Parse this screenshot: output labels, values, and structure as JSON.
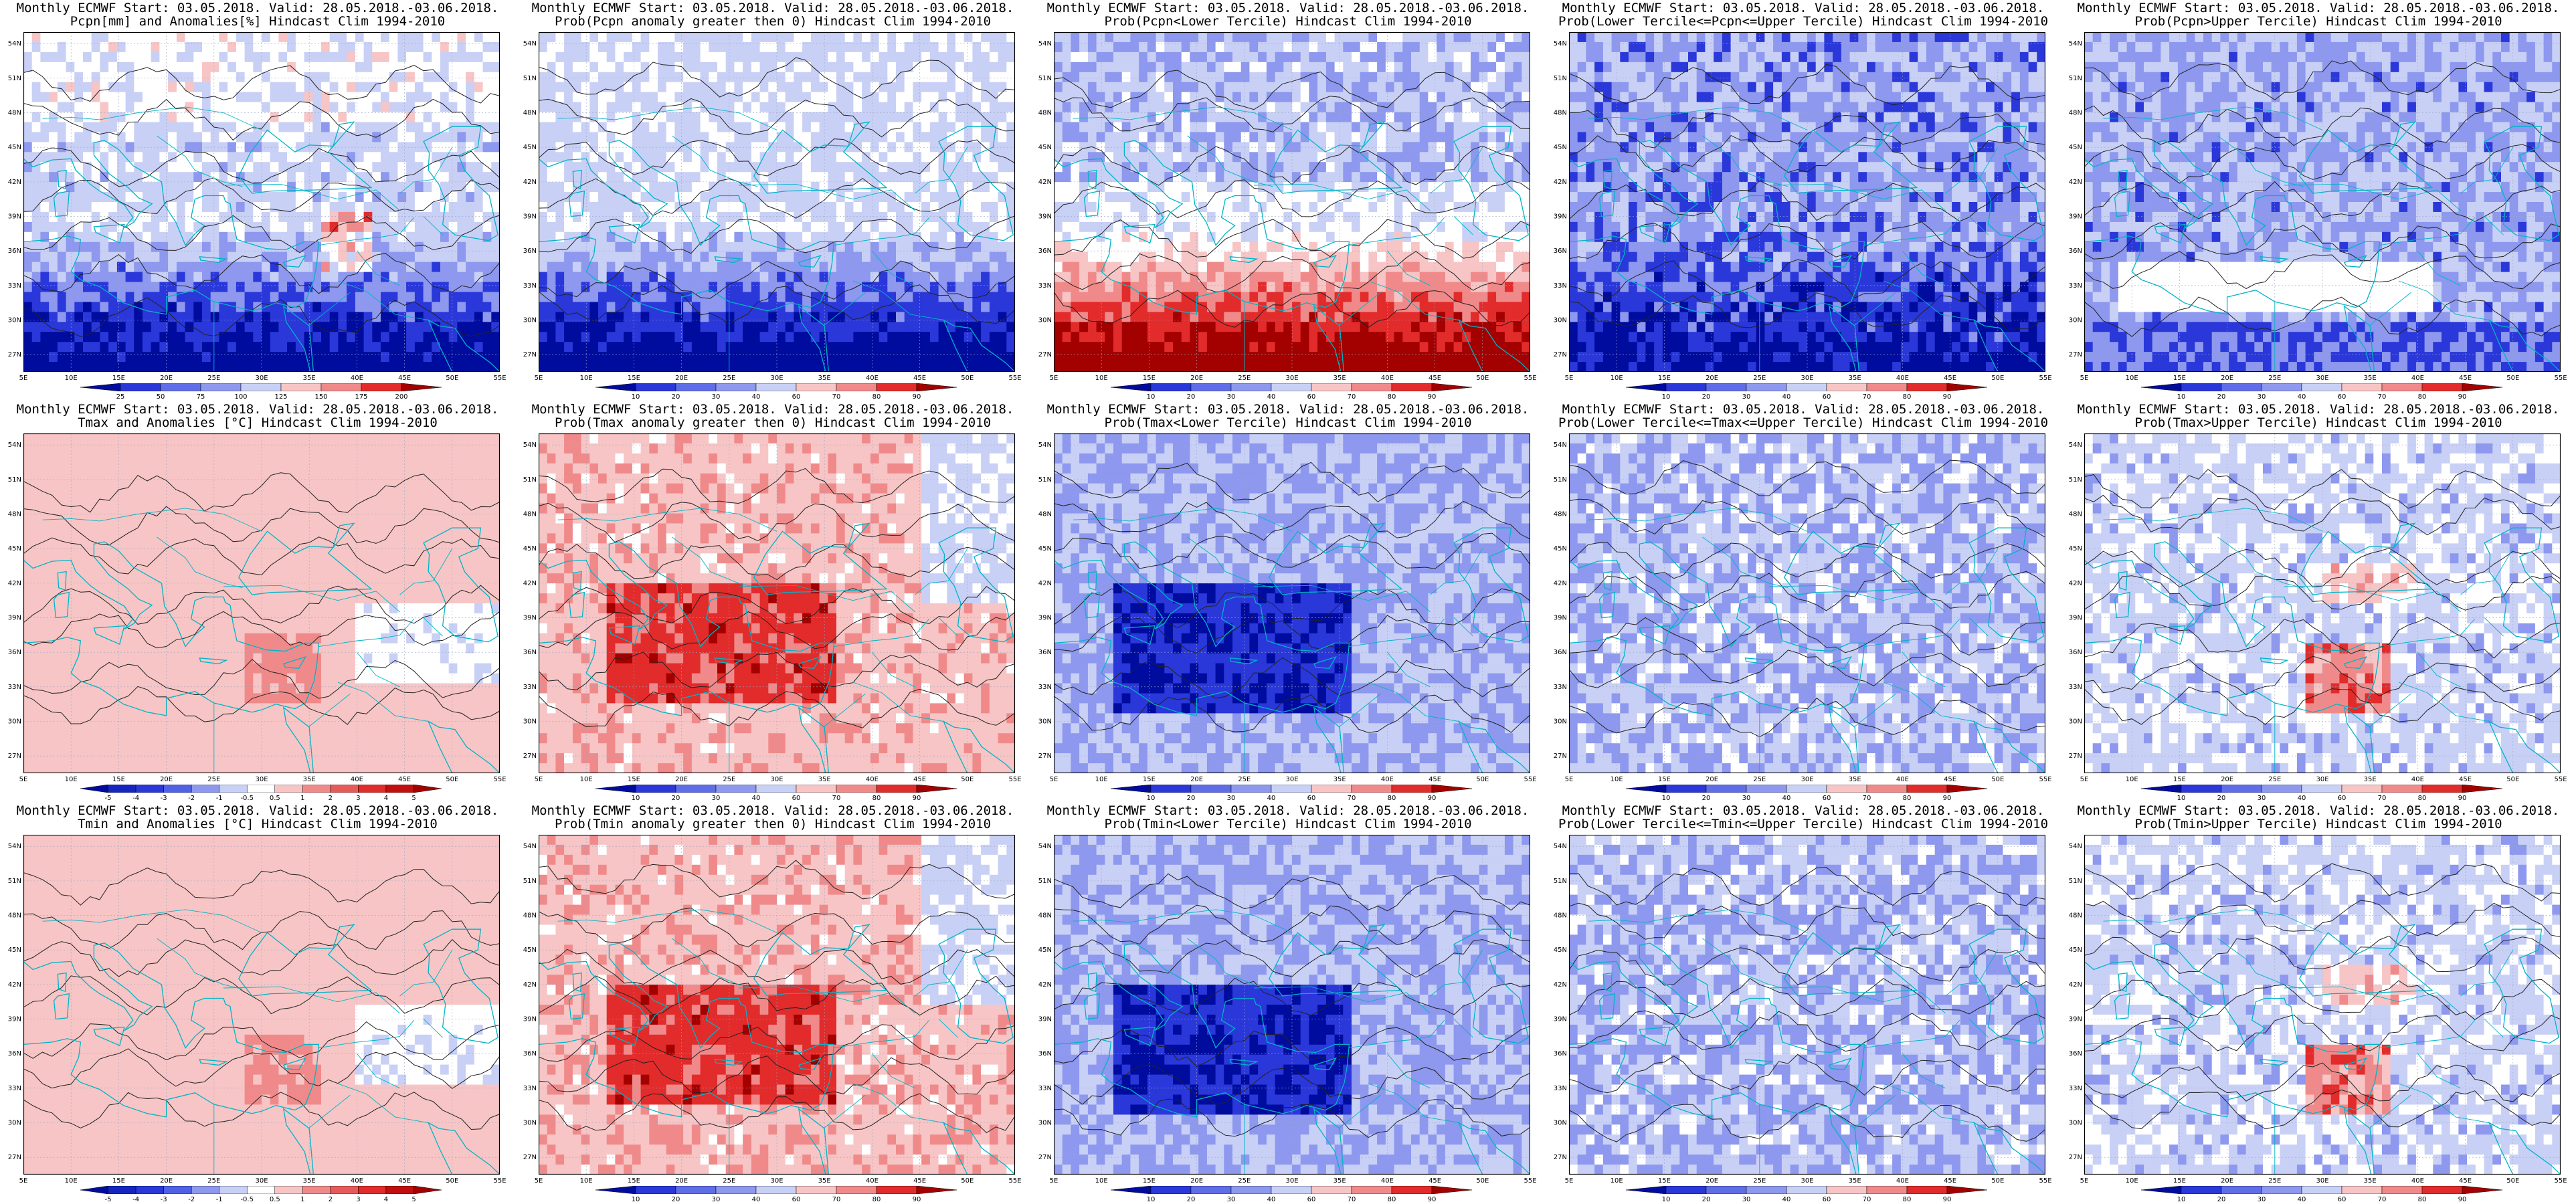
{
  "lat_ticks": [
    "54N",
    "51N",
    "48N",
    "45N",
    "42N",
    "39N",
    "36N",
    "33N",
    "30N",
    "27N"
  ],
  "lon_ticks": [
    "5E",
    "10E",
    "15E",
    "20E",
    "25E",
    "30E",
    "35E",
    "40E",
    "45E",
    "50E",
    "55E"
  ],
  "colors": {
    "blue_dark": "#000c9e",
    "blue_mid": "#2a37d9",
    "blue_light": "#8d98ee",
    "blue_pale": "#c9d0f6",
    "red_pale": "#f7c5c5",
    "red_light": "#f08a8a",
    "red_mid": "#e22b2b",
    "red_dark": "#a30000",
    "coast": "#00b4c8",
    "contour": "#222222"
  },
  "panels": [
    {
      "title1": "Monthly ECMWF Start: 03.05.2018. Valid: 28.05.2018.-03.06.2018.",
      "title2": "Pcpn[mm] and Anomalies[%] Hindcast Clim 1994-2010",
      "field": "pcpn_anom",
      "cbar": [
        "25",
        "50",
        "75",
        "100",
        "125",
        "150",
        "175",
        "200"
      ]
    },
    {
      "title1": "Monthly ECMWF Start: 03.05.2018. Valid: 28.05.2018.-03.06.2018.",
      "title2": "Prob(Pcpn anomaly greater then 0) Hindcast Clim 1994-2010",
      "field": "pcpn_prob_pos",
      "cbar": [
        "10",
        "20",
        "30",
        "40",
        "60",
        "70",
        "80",
        "90"
      ]
    },
    {
      "title1": "Monthly ECMWF Start: 03.05.2018. Valid: 28.05.2018.-03.06.2018.",
      "title2": "Prob(Pcpn<Lower Tercile) Hindcast Clim 1994-2010",
      "field": "pcpn_lower",
      "cbar": [
        "10",
        "20",
        "30",
        "40",
        "60",
        "70",
        "80",
        "90"
      ]
    },
    {
      "title1": "Monthly ECMWF Start: 03.05.2018. Valid: 28.05.2018.-03.06.2018.",
      "title2": "Prob(Lower Tercile<=Pcpn<=Upper Tercile) Hindcast Clim 1994-2010",
      "field": "pcpn_mid",
      "cbar": [
        "10",
        "20",
        "30",
        "40",
        "60",
        "70",
        "80",
        "90"
      ]
    },
    {
      "title1": "Monthly ECMWF Start: 03.05.2018. Valid: 28.05.2018.-03.06.2018.",
      "title2": "Prob(Pcpn>Upper Tercile) Hindcast Clim 1994-2010",
      "field": "pcpn_upper",
      "cbar": [
        "10",
        "20",
        "30",
        "40",
        "60",
        "70",
        "80",
        "90"
      ]
    },
    {
      "title1": "Monthly ECMWF Start: 03.05.2018. Valid: 28.05.2018.-03.06.2018.",
      "title2": "Tmax and Anomalies [°C] Hindcast Clim 1994-2010",
      "field": "t_anom",
      "cbar": [
        "-5",
        "-4",
        "-3",
        "-2",
        "-1",
        "-0.5",
        "0.5",
        "1",
        "2",
        "3",
        "4",
        "5"
      ]
    },
    {
      "title1": "Monthly ECMWF Start: 03.05.2018. Valid: 28.05.2018.-03.06.2018.",
      "title2": "Prob(Tmax anomaly greater then 0) Hindcast Clim 1994-2010",
      "field": "t_prob_pos",
      "cbar": [
        "10",
        "20",
        "30",
        "40",
        "60",
        "70",
        "80",
        "90"
      ]
    },
    {
      "title1": "Monthly ECMWF Start: 03.05.2018. Valid: 28.05.2018.-03.06.2018.",
      "title2": "Prob(Tmax<Lower Tercile) Hindcast Clim 1994-2010",
      "field": "t_lower",
      "cbar": [
        "10",
        "20",
        "30",
        "40",
        "60",
        "70",
        "80",
        "90"
      ]
    },
    {
      "title1": "Monthly ECMWF Start: 03.05.2018. Valid: 28.05.2018.-03.06.2018.",
      "title2": "Prob(Lower Tercile<=Tmax<=Upper Tercile) Hindcast Clim 1994-2010",
      "field": "t_mid",
      "cbar": [
        "10",
        "20",
        "30",
        "40",
        "60",
        "70",
        "80",
        "90"
      ]
    },
    {
      "title1": "Monthly ECMWF Start: 03.05.2018. Valid: 28.05.2018.-03.06.2018.",
      "title2": "Prob(Tmax>Upper Tercile) Hindcast Clim 1994-2010",
      "field": "t_upper",
      "cbar": [
        "10",
        "20",
        "30",
        "40",
        "60",
        "70",
        "80",
        "90"
      ]
    },
    {
      "title1": "Monthly ECMWF Start: 03.05.2018. Valid: 28.05.2018.-03.06.2018.",
      "title2": "Tmin and Anomalies [°C] Hindcast Clim 1994-2010",
      "field": "t_anom",
      "cbar": [
        "-5",
        "-4",
        "-3",
        "-2",
        "-1",
        "-0.5",
        "0.5",
        "1",
        "2",
        "3",
        "4",
        "5"
      ]
    },
    {
      "title1": "Monthly ECMWF Start: 03.05.2018. Valid: 28.05.2018.-03.06.2018.",
      "title2": "Prob(Tmin anomaly greater then 0) Hindcast Clim 1994-2010",
      "field": "t_prob_pos",
      "cbar": [
        "10",
        "20",
        "30",
        "40",
        "60",
        "70",
        "80",
        "90"
      ]
    },
    {
      "title1": "Monthly ECMWF Start: 03.05.2018. Valid: 28.05.2018.-03.06.2018.",
      "title2": "Prob(Tmin<Lower Tercile) Hindcast Clim 1994-2010",
      "field": "t_lower",
      "cbar": [
        "10",
        "20",
        "30",
        "40",
        "60",
        "70",
        "80",
        "90"
      ]
    },
    {
      "title1": "Monthly ECMWF Start: 03.05.2018. Valid: 28.05.2018.-03.06.2018.",
      "title2": "Prob(Lower Tercile<=Tmin<=Upper Tercile) Hindcast Clim 1994-2010",
      "field": "t_mid",
      "cbar": [
        "10",
        "20",
        "30",
        "40",
        "60",
        "70",
        "80",
        "90"
      ]
    },
    {
      "title1": "Monthly ECMWF Start: 03.05.2018. Valid: 28.05.2018.-03.06.2018.",
      "title2": "Prob(Tmin>Upper Tercile) Hindcast Clim 1994-2010",
      "field": "t_upper",
      "cbar": [
        "10",
        "20",
        "30",
        "40",
        "60",
        "70",
        "80",
        "90"
      ]
    }
  ]
}
